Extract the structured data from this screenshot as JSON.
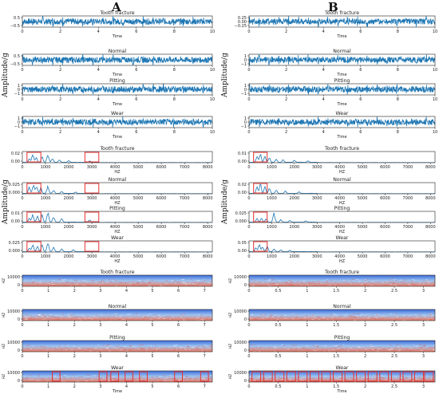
{
  "column_labels": [
    "A",
    "B"
  ],
  "amplitude_label": "Amplitude/g",
  "colors": {
    "signal": "#1f77b4",
    "highlight": "#e8302f",
    "spec_low": "#3b6ad8",
    "spec_mid": "#9ec4f2",
    "spec_high": "#f0775e"
  },
  "chart_data": [
    {
      "id": "A-time-tooth",
      "column": "A",
      "type": "line",
      "title": "Tooth fracture",
      "xlabel": "Time",
      "ylabel": "",
      "xlim": [
        0,
        10
      ],
      "xticks": [
        0,
        2,
        4,
        6,
        8,
        10
      ],
      "ylim": [
        -0.6,
        0.6
      ],
      "yticks": [
        "0.5",
        "−0.5"
      ],
      "signal": "time_dense"
    },
    {
      "id": "A-time-normal",
      "column": "A",
      "type": "line",
      "title": "Normal",
      "xlabel": "Time",
      "ylabel": "",
      "xlim": [
        0,
        10
      ],
      "xticks": [
        0,
        2,
        4,
        6,
        8,
        10
      ],
      "ylim": [
        -0.6,
        0.6
      ],
      "yticks": [
        "0.5",
        "−0.5"
      ],
      "signal": "time_dense"
    },
    {
      "id": "A-time-pitting",
      "column": "A",
      "type": "line",
      "title": "Pitting",
      "xlabel": "Time",
      "ylabel": "",
      "xlim": [
        0,
        10
      ],
      "xticks": [
        0,
        2,
        4,
        6,
        8,
        10
      ],
      "ylim": [
        -1,
        1
      ],
      "yticks": [
        "1",
        "0",
        "−1"
      ],
      "signal": "time_dense"
    },
    {
      "id": "A-time-wear",
      "column": "A",
      "type": "line",
      "title": "Wear",
      "xlabel": "Time",
      "ylabel": "",
      "xlim": [
        0,
        10
      ],
      "xticks": [
        0,
        2,
        4,
        6,
        8,
        10
      ],
      "ylim": [
        -1,
        1
      ],
      "yticks": [
        "1",
        "0",
        "−1"
      ],
      "signal": "time_dense"
    },
    {
      "id": "A-freq-tooth",
      "column": "A",
      "type": "line",
      "title": "Tooth fracture",
      "xlabel": "HZ",
      "ylabel": "",
      "xlim": [
        0,
        8200
      ],
      "xticks": [
        0,
        1000,
        2000,
        3000,
        4000,
        5000,
        6000,
        7000,
        8000
      ],
      "ylim": [
        0,
        0.025
      ],
      "yticks": [
        "0.02",
        "0.00"
      ],
      "peaks": [
        [
          300,
          0.008
        ],
        [
          450,
          0.018
        ],
        [
          600,
          0.012
        ],
        [
          850,
          0.014
        ],
        [
          1100,
          0.02
        ],
        [
          1300,
          0.01
        ],
        [
          1600,
          0.006
        ],
        [
          2000,
          0.004
        ],
        [
          2900,
          0.003
        ]
      ],
      "highlights": [
        [
          200,
          800
        ],
        [
          2700,
          3300
        ]
      ]
    },
    {
      "id": "A-freq-normal",
      "column": "A",
      "type": "line",
      "title": "Normal",
      "xlabel": "HZ",
      "ylabel": "",
      "xlim": [
        0,
        8200
      ],
      "xticks": [
        0,
        1000,
        2000,
        3000,
        4000,
        5000,
        6000,
        7000,
        8000
      ],
      "ylim": [
        0,
        0.03
      ],
      "yticks": [
        "0.025",
        "0.000"
      ],
      "peaks": [
        [
          300,
          0.02
        ],
        [
          480,
          0.026
        ],
        [
          620,
          0.022
        ],
        [
          800,
          0.016
        ],
        [
          1100,
          0.021
        ],
        [
          1350,
          0.01
        ],
        [
          1700,
          0.006
        ],
        [
          2300,
          0.004
        ]
      ],
      "highlights": [
        [
          200,
          800
        ],
        [
          2700,
          3300
        ]
      ]
    },
    {
      "id": "A-freq-pitting",
      "column": "A",
      "type": "line",
      "title": "Pitting",
      "xlabel": "HZ",
      "ylabel": "",
      "xlim": [
        0,
        8200
      ],
      "xticks": [
        0,
        1000,
        2000,
        3000,
        4000,
        5000,
        6000,
        7000,
        8000
      ],
      "ylim": [
        0,
        0.012
      ],
      "yticks": [
        "0.01",
        "0.00"
      ],
      "peaks": [
        [
          300,
          0.005
        ],
        [
          450,
          0.009
        ],
        [
          650,
          0.007
        ],
        [
          850,
          0.008
        ],
        [
          1100,
          0.011
        ],
        [
          1350,
          0.006
        ],
        [
          1700,
          0.004
        ],
        [
          2900,
          0.003
        ]
      ],
      "highlights": [
        [
          200,
          800
        ],
        [
          2700,
          3300
        ]
      ]
    },
    {
      "id": "A-freq-wear",
      "column": "A",
      "type": "line",
      "title": "Wear",
      "xlabel": "HZ",
      "ylabel": "",
      "xlim": [
        0,
        8200
      ],
      "xticks": [
        0,
        1000,
        2000,
        3000,
        4000,
        5000,
        6000,
        7000,
        8000
      ],
      "ylim": [
        0,
        0.028
      ],
      "yticks": [
        "0.025",
        "0.000"
      ],
      "peaks": [
        [
          300,
          0.01
        ],
        [
          450,
          0.02
        ],
        [
          650,
          0.016
        ],
        [
          850,
          0.018
        ],
        [
          1100,
          0.026
        ],
        [
          1350,
          0.012
        ],
        [
          1700,
          0.008
        ],
        [
          2200,
          0.005
        ]
      ],
      "highlights": [
        [
          200,
          800
        ],
        [
          2700,
          3300
        ]
      ]
    },
    {
      "id": "A-spec-tooth",
      "column": "A",
      "type": "heatmap",
      "title": "Tooth fracture",
      "xlabel": "",
      "ylabel": "HZ",
      "xlim": [
        0,
        7.3
      ],
      "xticks": [
        0,
        1,
        2,
        3,
        4,
        5,
        6,
        7
      ],
      "ylim": [
        0,
        10000
      ],
      "yticks": [
        "10000",
        "0"
      ],
      "highlights": []
    },
    {
      "id": "A-spec-normal",
      "column": "A",
      "type": "heatmap",
      "title": "Normal",
      "xlabel": "",
      "ylabel": "HZ",
      "xlim": [
        0,
        7.3
      ],
      "xticks": [
        0,
        1,
        2,
        3,
        4,
        5,
        6,
        7
      ],
      "ylim": [
        0,
        10000
      ],
      "yticks": [
        "10000",
        "0"
      ],
      "highlights": []
    },
    {
      "id": "A-spec-pitting",
      "column": "A",
      "type": "heatmap",
      "title": "Pitting",
      "xlabel": "",
      "ylabel": "HZ",
      "xlim": [
        0,
        7.3
      ],
      "xticks": [
        0,
        1,
        2,
        3,
        4,
        5,
        6,
        7
      ],
      "ylim": [
        0,
        10000
      ],
      "yticks": [
        "10000",
        "0"
      ],
      "highlights": []
    },
    {
      "id": "A-spec-wear",
      "column": "A",
      "type": "heatmap",
      "title": "Wear",
      "xlabel": "Time",
      "ylabel": "HZ",
      "xlim": [
        0,
        7.3
      ],
      "xticks": [
        0,
        1,
        2,
        3,
        4,
        5,
        6,
        7
      ],
      "ylim": [
        0,
        10000
      ],
      "yticks": [
        "10000",
        "0"
      ],
      "highlights": [
        [
          1.15,
          1.45
        ],
        [
          2.95,
          3.25
        ],
        [
          3.4,
          3.7
        ],
        [
          3.95,
          4.25
        ],
        [
          4.5,
          4.8
        ],
        [
          5.85,
          6.15
        ],
        [
          6.85,
          7.15
        ]
      ]
    },
    {
      "id": "B-time-tooth",
      "column": "B",
      "type": "line",
      "title": "Tooth fracture",
      "xlabel": "Time",
      "ylabel": "",
      "xlim": [
        0,
        10
      ],
      "xticks": [
        0,
        2,
        4,
        6,
        8,
        10
      ],
      "ylim": [
        -0.6,
        0.6
      ],
      "yticks": [
        "0.25",
        "0.00",
        "−0.25"
      ],
      "signal": "time_dense"
    },
    {
      "id": "B-time-normal",
      "column": "B",
      "type": "line",
      "title": "Normal",
      "xlabel": "Time",
      "ylabel": "",
      "xlim": [
        0,
        10
      ],
      "xticks": [
        0,
        2,
        4,
        6,
        8,
        10
      ],
      "ylim": [
        -1,
        1
      ],
      "yticks": [
        "1",
        "0",
        "−1"
      ],
      "signal": "time_dense"
    },
    {
      "id": "B-time-pitting",
      "column": "B",
      "type": "line",
      "title": "Pitting",
      "xlabel": "Time",
      "ylabel": "",
      "xlim": [
        0,
        10
      ],
      "xticks": [
        0,
        2,
        4,
        6,
        8,
        10
      ],
      "ylim": [
        -1,
        1
      ],
      "yticks": [
        "1",
        "0",
        "−1"
      ],
      "signal": "time_dense"
    },
    {
      "id": "B-time-wear",
      "column": "B",
      "type": "line",
      "title": "Wear",
      "xlabel": "Time",
      "ylabel": "",
      "xlim": [
        0,
        10
      ],
      "xticks": [
        0,
        2,
        4,
        6,
        8,
        10
      ],
      "ylim": [
        -1,
        1
      ],
      "yticks": [
        "1",
        "0",
        "−1"
      ],
      "signal": "time_dense"
    },
    {
      "id": "B-freq-tooth",
      "column": "B",
      "type": "line",
      "title": "Tooth fracture",
      "xlabel": "HZ",
      "ylabel": "",
      "xlim": [
        0,
        8200
      ],
      "xticks": [
        0,
        1000,
        2000,
        3000,
        4000,
        5000,
        6000,
        7000,
        8000
      ],
      "ylim": [
        0,
        0.02
      ],
      "yticks": [
        "0.01",
        "0.00"
      ],
      "peaks": [
        [
          350,
          0.012
        ],
        [
          500,
          0.017
        ],
        [
          700,
          0.012
        ],
        [
          900,
          0.01
        ],
        [
          1200,
          0.007
        ],
        [
          1500,
          0.005
        ],
        [
          2000,
          0.004
        ],
        [
          2600,
          0.003
        ]
      ],
      "highlights": [
        [
          200,
          800
        ]
      ]
    },
    {
      "id": "B-freq-normal",
      "column": "B",
      "type": "line",
      "title": "Normal",
      "xlabel": "HZ",
      "ylabel": "",
      "xlim": [
        0,
        8200
      ],
      "xticks": [
        0,
        1000,
        2000,
        3000,
        4000,
        5000,
        6000,
        7000,
        8000
      ],
      "ylim": [
        0,
        0.025
      ],
      "yticks": [
        "0.02",
        "0.00"
      ],
      "peaks": [
        [
          350,
          0.015
        ],
        [
          500,
          0.022
        ],
        [
          700,
          0.016
        ],
        [
          900,
          0.012
        ],
        [
          1200,
          0.008
        ],
        [
          1600,
          0.006
        ],
        [
          2200,
          0.004
        ]
      ],
      "highlights": [
        [
          200,
          800
        ]
      ]
    },
    {
      "id": "B-freq-pitting",
      "column": "B",
      "type": "line",
      "title": "Pitting",
      "xlabel": "HZ",
      "ylabel": "",
      "xlim": [
        0,
        8200
      ],
      "xticks": [
        0,
        1000,
        2000,
        3000,
        4000,
        5000,
        6000,
        7000,
        8000
      ],
      "ylim": [
        0,
        0.03
      ],
      "yticks": [
        "0.025",
        "0.000"
      ],
      "peaks": [
        [
          350,
          0.01
        ],
        [
          550,
          0.012
        ],
        [
          750,
          0.01
        ],
        [
          1100,
          0.026
        ],
        [
          1400,
          0.008
        ],
        [
          1800,
          0.005
        ],
        [
          2500,
          0.004
        ]
      ],
      "highlights": [
        [
          200,
          800
        ]
      ]
    },
    {
      "id": "B-freq-wear",
      "column": "B",
      "type": "line",
      "title": "Wear",
      "xlabel": "HZ",
      "ylabel": "",
      "xlim": [
        0,
        8200
      ],
      "xticks": [
        0,
        1000,
        2000,
        3000,
        4000,
        5000,
        6000,
        7000,
        8000
      ],
      "ylim": [
        0,
        0.07
      ],
      "yticks": [
        "0.05",
        "0.00"
      ],
      "peaks": [
        [
          300,
          0.03
        ],
        [
          450,
          0.05
        ],
        [
          600,
          0.035
        ],
        [
          800,
          0.04
        ],
        [
          1100,
          0.02
        ],
        [
          1400,
          0.012
        ],
        [
          1800,
          0.008
        ]
      ],
      "highlights": [
        [
          200,
          800
        ]
      ]
    },
    {
      "id": "B-spec-tooth",
      "column": "B",
      "type": "heatmap",
      "title": "Tooth fracture",
      "xlabel": "",
      "ylabel": "HZ",
      "xlim": [
        0,
        3.2
      ],
      "xticks": [
        0,
        0.5,
        1,
        1.5,
        2,
        2.5,
        3
      ],
      "ylim": [
        0,
        10000
      ],
      "yticks": [
        "10000",
        "0"
      ],
      "highlights": []
    },
    {
      "id": "B-spec-normal",
      "column": "B",
      "type": "heatmap",
      "title": "Normal",
      "xlabel": "",
      "ylabel": "HZ",
      "xlim": [
        0,
        3.2
      ],
      "xticks": [
        0,
        0.5,
        1,
        1.5,
        2,
        2.5,
        3
      ],
      "ylim": [
        0,
        10000
      ],
      "yticks": [
        "10000",
        "0"
      ],
      "highlights": []
    },
    {
      "id": "B-spec-pitting",
      "column": "B",
      "type": "heatmap",
      "title": "Pitting",
      "xlabel": "",
      "ylabel": "HZ",
      "xlim": [
        0,
        3.2
      ],
      "xticks": [
        0,
        0.5,
        1,
        1.5,
        2,
        2.5,
        3
      ],
      "ylim": [
        0,
        10000
      ],
      "yticks": [
        "10000",
        "0"
      ],
      "highlights": []
    },
    {
      "id": "B-spec-wear",
      "column": "B",
      "type": "heatmap",
      "title": "Wear",
      "xlabel": "Time",
      "ylabel": "HZ",
      "xlim": [
        0,
        3.2
      ],
      "xticks": [
        0,
        0.5,
        1,
        1.5,
        2,
        2.5,
        3
      ],
      "ylim": [
        0,
        10000
      ],
      "yticks": [
        "10000",
        "0"
      ],
      "highlights": [
        [
          0.05,
          0.2
        ],
        [
          0.25,
          0.4
        ],
        [
          0.45,
          0.6
        ],
        [
          0.65,
          0.8
        ],
        [
          0.85,
          1.0
        ],
        [
          1.05,
          1.2
        ],
        [
          1.25,
          1.4
        ],
        [
          1.45,
          1.6
        ],
        [
          1.65,
          1.8
        ],
        [
          1.85,
          2.0
        ],
        [
          2.05,
          2.2
        ],
        [
          2.25,
          2.4
        ],
        [
          2.45,
          2.6
        ],
        [
          2.65,
          2.8
        ],
        [
          2.85,
          3.0
        ],
        [
          3.02,
          3.17
        ]
      ]
    }
  ]
}
